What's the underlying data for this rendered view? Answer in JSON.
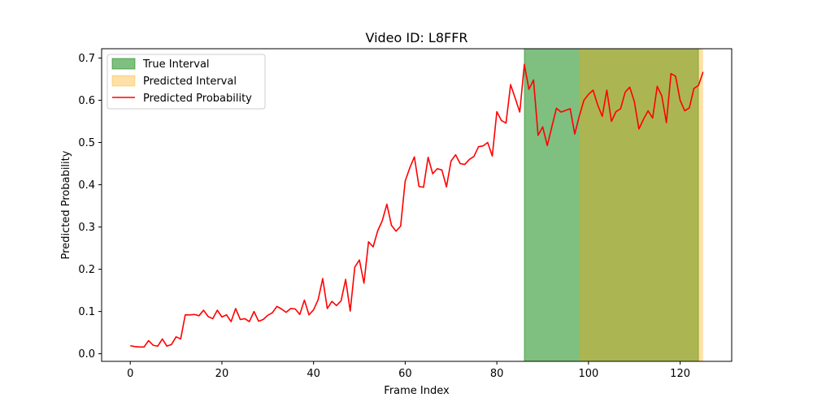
{
  "chart_data": {
    "type": "line",
    "title": "Video ID: L8FFR",
    "xlabel": "Frame Index",
    "ylabel": "Predicted Probability",
    "xlim": [
      -6.25,
      131.25
    ],
    "ylim": [
      -0.018,
      0.722
    ],
    "xticks": [
      0,
      20,
      40,
      60,
      80,
      100,
      120
    ],
    "yticks": [
      0.0,
      0.1,
      0.2,
      0.3,
      0.4,
      0.5,
      0.6,
      0.7
    ],
    "ytick_labels": [
      "0.0",
      "0.1",
      "0.2",
      "0.3",
      "0.4",
      "0.5",
      "0.6",
      "0.7"
    ],
    "grid": false,
    "legend_position": "upper-left",
    "legend": [
      "True Interval",
      "Predicted Interval",
      "Predicted Probability"
    ],
    "true_interval": {
      "label": "True Interval",
      "start": 86,
      "end": 124,
      "color": "#008000",
      "alpha": 0.5
    },
    "predicted_interval": {
      "label": "Predicted Interval",
      "start": 98,
      "end": 125,
      "color": "#ffa500",
      "alpha": 0.35
    },
    "series": [
      {
        "name": "Predicted Probability",
        "color": "#ff0000",
        "x": [
          0,
          1,
          2,
          3,
          4,
          5,
          6,
          7,
          8,
          9,
          10,
          11,
          12,
          13,
          14,
          15,
          16,
          17,
          18,
          19,
          20,
          21,
          22,
          23,
          24,
          25,
          26,
          27,
          28,
          29,
          30,
          31,
          32,
          33,
          34,
          35,
          36,
          37,
          38,
          39,
          40,
          41,
          42,
          43,
          44,
          45,
          46,
          47,
          48,
          49,
          50,
          51,
          52,
          53,
          54,
          55,
          56,
          57,
          58,
          59,
          60,
          61,
          62,
          63,
          64,
          65,
          66,
          67,
          68,
          69,
          70,
          71,
          72,
          73,
          74,
          75,
          76,
          77,
          78,
          79,
          80,
          81,
          82,
          83,
          84,
          85,
          86,
          87,
          88,
          89,
          90,
          91,
          92,
          93,
          94,
          95,
          96,
          97,
          98,
          99,
          100,
          101,
          102,
          103,
          104,
          105,
          106,
          107,
          108,
          109,
          110,
          111,
          112,
          113,
          114,
          115,
          116,
          117,
          118,
          119,
          120,
          121,
          122,
          123,
          124,
          125
        ],
        "values": [
          0.019,
          0.017,
          0.016,
          0.016,
          0.031,
          0.02,
          0.018,
          0.035,
          0.018,
          0.022,
          0.04,
          0.035,
          0.092,
          0.092,
          0.093,
          0.09,
          0.103,
          0.088,
          0.083,
          0.103,
          0.087,
          0.092,
          0.076,
          0.107,
          0.081,
          0.083,
          0.076,
          0.1,
          0.077,
          0.081,
          0.091,
          0.097,
          0.112,
          0.106,
          0.098,
          0.107,
          0.106,
          0.093,
          0.127,
          0.092,
          0.104,
          0.128,
          0.178,
          0.107,
          0.124,
          0.114,
          0.125,
          0.176,
          0.101,
          0.205,
          0.222,
          0.167,
          0.265,
          0.253,
          0.291,
          0.315,
          0.354,
          0.304,
          0.29,
          0.302,
          0.409,
          0.44,
          0.466,
          0.396,
          0.394,
          0.465,
          0.426,
          0.438,
          0.435,
          0.395,
          0.456,
          0.471,
          0.45,
          0.448,
          0.46,
          0.467,
          0.49,
          0.492,
          0.5,
          0.468,
          0.573,
          0.552,
          0.546,
          0.637,
          0.605,
          0.572,
          0.685,
          0.626,
          0.648,
          0.517,
          0.537,
          0.493,
          0.537,
          0.581,
          0.572,
          0.576,
          0.58,
          0.52,
          0.563,
          0.6,
          0.614,
          0.624,
          0.589,
          0.562,
          0.624,
          0.55,
          0.573,
          0.58,
          0.619,
          0.631,
          0.597,
          0.532,
          0.555,
          0.575,
          0.558,
          0.633,
          0.61,
          0.547,
          0.663,
          0.657,
          0.6,
          0.575,
          0.582,
          0.628,
          0.635,
          0.667
        ]
      }
    ]
  }
}
